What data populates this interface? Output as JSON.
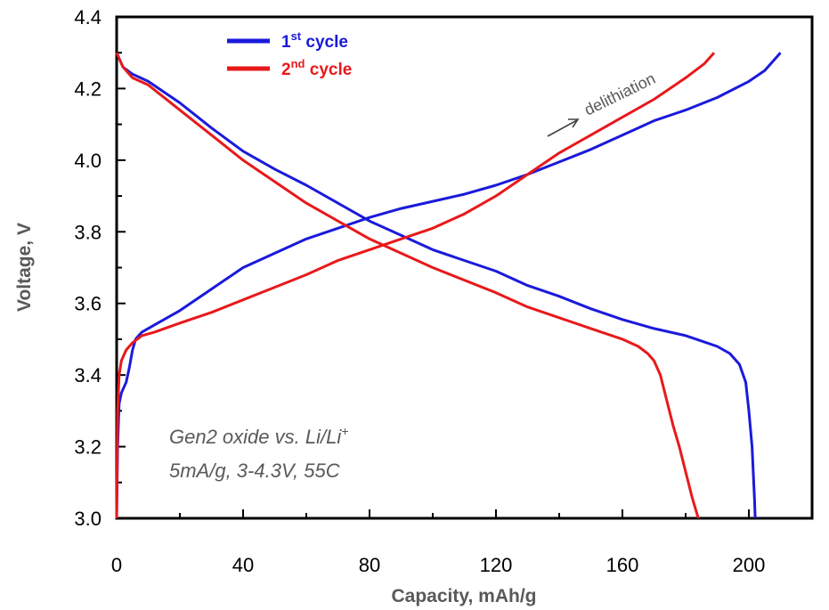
{
  "chart_data": {
    "type": "line",
    "title": "",
    "xlabel": "Capacity, mAh/g",
    "ylabel": "Voltage, V",
    "xlim": [
      0,
      220
    ],
    "ylim": [
      3.0,
      4.4
    ],
    "x_ticks": [
      "0",
      "40",
      "80",
      "120",
      "160",
      "200"
    ],
    "y_ticks": [
      "3.0",
      "3.2",
      "3.4",
      "3.6",
      "3.8",
      "4.0",
      "4.2",
      "4.4"
    ],
    "grid": false,
    "legend": {
      "placement": "top-left",
      "entries": [
        {
          "base": "1",
          "sup": "st",
          "rest": " cycle",
          "color": "#1a1adb"
        },
        {
          "base": "2",
          "sup": "nd",
          "rest": " cycle",
          "color": "#e8191b"
        }
      ]
    },
    "annotations": {
      "arrow_label": "delithiation",
      "note_line1_main": "Gen2 oxide vs. Li/Li",
      "note_line1_sup": "+",
      "note_line2": "5mA/g, 3-4.3V, 55C"
    },
    "series": [
      {
        "name": "1st cycle charge",
        "color": "#1a1adb",
        "points": [
          [
            0,
            3.0
          ],
          [
            0.3,
            3.2
          ],
          [
            0.8,
            3.32
          ],
          [
            1.5,
            3.35
          ],
          [
            3,
            3.38
          ],
          [
            4,
            3.42
          ],
          [
            5,
            3.47
          ],
          [
            6,
            3.5
          ],
          [
            7,
            3.51
          ],
          [
            8,
            3.52
          ],
          [
            12,
            3.54
          ],
          [
            20,
            3.58
          ],
          [
            30,
            3.64
          ],
          [
            40,
            3.7
          ],
          [
            50,
            3.74
          ],
          [
            60,
            3.78
          ],
          [
            70,
            3.81
          ],
          [
            80,
            3.84
          ],
          [
            90,
            3.865
          ],
          [
            100,
            3.885
          ],
          [
            110,
            3.905
          ],
          [
            120,
            3.93
          ],
          [
            130,
            3.96
          ],
          [
            140,
            3.995
          ],
          [
            150,
            4.03
          ],
          [
            160,
            4.07
          ],
          [
            170,
            4.11
          ],
          [
            180,
            4.14
          ],
          [
            190,
            4.175
          ],
          [
            200,
            4.22
          ],
          [
            205,
            4.25
          ],
          [
            210,
            4.3
          ]
        ]
      },
      {
        "name": "1st cycle discharge",
        "color": "#1a1adb",
        "points": [
          [
            0,
            4.3
          ],
          [
            2,
            4.26
          ],
          [
            5,
            4.24
          ],
          [
            10,
            4.22
          ],
          [
            20,
            4.16
          ],
          [
            30,
            4.09
          ],
          [
            40,
            4.025
          ],
          [
            50,
            3.975
          ],
          [
            60,
            3.93
          ],
          [
            70,
            3.88
          ],
          [
            80,
            3.83
          ],
          [
            90,
            3.79
          ],
          [
            100,
            3.75
          ],
          [
            110,
            3.72
          ],
          [
            120,
            3.69
          ],
          [
            130,
            3.65
          ],
          [
            140,
            3.62
          ],
          [
            150,
            3.585
          ],
          [
            160,
            3.555
          ],
          [
            170,
            3.53
          ],
          [
            180,
            3.51
          ],
          [
            185,
            3.495
          ],
          [
            190,
            3.48
          ],
          [
            194,
            3.46
          ],
          [
            197,
            3.43
          ],
          [
            199,
            3.38
          ],
          [
            200,
            3.3
          ],
          [
            201,
            3.2
          ],
          [
            201.8,
            3.05
          ],
          [
            202,
            3.0
          ]
        ]
      },
      {
        "name": "2nd cycle charge",
        "color": "#e8191b",
        "points": [
          [
            0,
            3.0
          ],
          [
            0.3,
            3.3
          ],
          [
            0.8,
            3.4
          ],
          [
            1.5,
            3.44
          ],
          [
            3,
            3.47
          ],
          [
            5,
            3.49
          ],
          [
            8,
            3.51
          ],
          [
            12,
            3.52
          ],
          [
            20,
            3.545
          ],
          [
            30,
            3.575
          ],
          [
            40,
            3.61
          ],
          [
            50,
            3.645
          ],
          [
            60,
            3.68
          ],
          [
            70,
            3.72
          ],
          [
            80,
            3.75
          ],
          [
            90,
            3.78
          ],
          [
            100,
            3.81
          ],
          [
            110,
            3.85
          ],
          [
            120,
            3.9
          ],
          [
            130,
            3.96
          ],
          [
            140,
            4.02
          ],
          [
            150,
            4.07
          ],
          [
            160,
            4.12
          ],
          [
            170,
            4.17
          ],
          [
            180,
            4.23
          ],
          [
            186,
            4.27
          ],
          [
            189,
            4.3
          ]
        ]
      },
      {
        "name": "2nd cycle discharge",
        "color": "#e8191b",
        "points": [
          [
            0,
            4.3
          ],
          [
            2,
            4.26
          ],
          [
            5,
            4.23
          ],
          [
            10,
            4.21
          ],
          [
            20,
            4.14
          ],
          [
            30,
            4.07
          ],
          [
            40,
            4.0
          ],
          [
            50,
            3.94
          ],
          [
            60,
            3.88
          ],
          [
            70,
            3.83
          ],
          [
            80,
            3.78
          ],
          [
            90,
            3.74
          ],
          [
            100,
            3.7
          ],
          [
            110,
            3.665
          ],
          [
            120,
            3.63
          ],
          [
            130,
            3.59
          ],
          [
            140,
            3.56
          ],
          [
            150,
            3.53
          ],
          [
            160,
            3.5
          ],
          [
            165,
            3.48
          ],
          [
            168,
            3.46
          ],
          [
            170,
            3.44
          ],
          [
            172,
            3.4
          ],
          [
            174,
            3.33
          ],
          [
            176,
            3.26
          ],
          [
            178,
            3.2
          ],
          [
            180,
            3.13
          ],
          [
            182,
            3.06
          ],
          [
            184,
            3.0
          ]
        ]
      }
    ]
  }
}
